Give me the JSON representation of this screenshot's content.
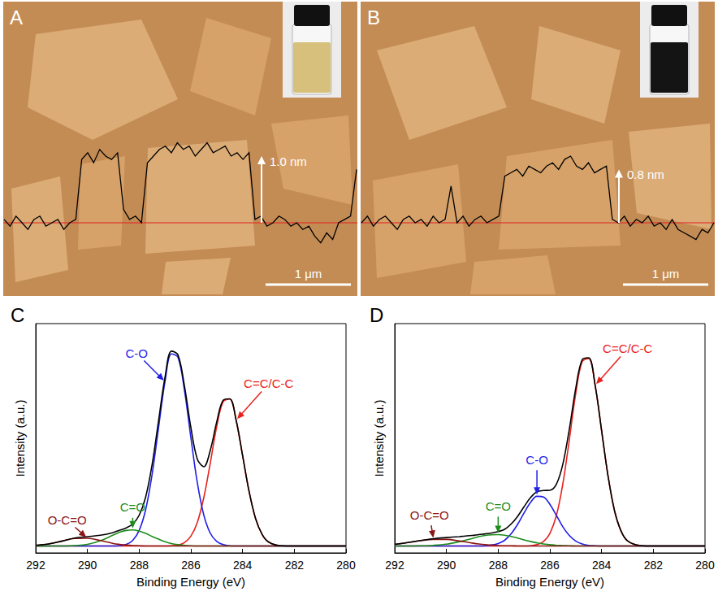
{
  "panels": [
    {
      "panel_label": "A",
      "type": "afm_image",
      "height": {
        "value": 1.0,
        "label": "1.0 nm"
      },
      "scale_bar": {
        "value": 1,
        "label": "1 μm"
      },
      "inset_color": "#d6c07c",
      "profile": [
        0.05,
        -0.05,
        0.1,
        0.0,
        -0.1,
        0.05,
        0.1,
        -0.05,
        0.0,
        0.05,
        -0.1,
        0.0,
        0.05,
        0.95,
        1.05,
        0.9,
        1.1,
        1.0,
        0.95,
        1.05,
        0.2,
        0.05,
        0.1,
        0.0,
        0.9,
        1.0,
        1.1,
        1.15,
        1.05,
        1.2,
        1.1,
        1.15,
        1.0,
        1.1,
        1.2,
        1.05,
        1.1,
        1.15,
        1.0,
        1.05,
        0.95,
        1.05,
        0.05,
        0.1,
        -0.05,
        0.0,
        0.1,
        0.05,
        -0.05,
        0.0,
        -0.1,
        -0.05,
        -0.2,
        -0.3,
        -0.15,
        -0.25,
        0.0,
        0.05,
        0.1,
        0.8
      ]
    },
    {
      "panel_label": "B",
      "type": "afm_image",
      "height": {
        "value": 0.8,
        "label": "0.8 nm"
      },
      "scale_bar": {
        "value": 1,
        "label": "1 μm"
      },
      "inset_color": "#141414",
      "profile": [
        0.0,
        0.1,
        -0.05,
        0.05,
        0.1,
        0.0,
        -0.1,
        0.05,
        0.1,
        0.0,
        0.05,
        -0.05,
        0.1,
        0.0,
        0.05,
        0.55,
        0.0,
        0.1,
        -0.05,
        0.05,
        0.1,
        0.0,
        0.05,
        0.1,
        0.7,
        0.75,
        0.8,
        0.7,
        0.85,
        0.8,
        0.75,
        0.85,
        0.9,
        0.8,
        0.95,
        1.0,
        0.85,
        0.8,
        0.9,
        0.75,
        0.8,
        0.85,
        0.05,
        0.0,
        0.1,
        -0.05,
        0.05,
        0.0,
        0.1,
        -0.05,
        0.0,
        -0.1,
        0.05,
        -0.1,
        -0.15,
        -0.2,
        -0.25,
        -0.1,
        -0.15,
        0.0
      ]
    }
  ],
  "chart_data": [
    {
      "panel_label": "C",
      "type": "line",
      "x_label": "Binding Energy (eV)",
      "y_label": "Intensity (a.u.)",
      "xlim": [
        292,
        280
      ],
      "xticks": [
        292,
        290,
        288,
        286,
        284,
        282,
        280
      ],
      "ylim": [
        0,
        100
      ],
      "tick_labels": "x",
      "grid": false,
      "x": [
        292,
        291.5,
        291,
        290.5,
        290,
        289.5,
        289,
        288.75,
        288.5,
        288.25,
        288,
        287.75,
        287.5,
        287.25,
        287,
        286.75,
        286.5,
        286.25,
        286,
        285.75,
        285.5,
        285.25,
        285,
        284.75,
        284.5,
        284.25,
        284,
        283.75,
        283.5,
        283.25,
        283,
        282.5,
        282,
        281.5,
        281,
        280.5,
        280
      ],
      "series": [
        {
          "color": "#000000",
          "values": [
            3.3,
            3.9,
            5.1,
            6.5,
            7.1,
            7.7,
            8.9,
            9.9,
            10.9,
            12.6,
            16.4,
            24.3,
            38.4,
            57.6,
            76.6,
            88.0,
            86.4,
            72.9,
            54.7,
            40.9,
            37.6,
            44.7,
            57.1,
            66.6,
            67.2,
            57.9,
            42.5,
            26.9,
            15.1,
            8.2,
            4.8,
            3.1,
            3,
            3,
            3,
            3,
            3
          ]
        },
        {
          "name": "C=C/C-C",
          "color": "#e8211d",
          "values": [
            3,
            3,
            3,
            3,
            3,
            3,
            3,
            3,
            3,
            3,
            3,
            3,
            3,
            3,
            3,
            3.1,
            3.4,
            4.5,
            7.3,
            13.3,
            24.1,
            39.1,
            55.1,
            66.0,
            67.1,
            57.9,
            42.5,
            26.9,
            15.1,
            8.2,
            4.8,
            3.1,
            3,
            3,
            3,
            3,
            3
          ]
        },
        {
          "name": "C-O",
          "color": "#1f1fe8",
          "values": [
            3,
            3,
            3,
            3,
            3,
            3,
            3,
            3.2,
            3.7,
            5.4,
            9.8,
            18.8,
            34.2,
            54.6,
            74.7,
            86.8,
            85.4,
            71.1,
            50.3,
            30.6,
            16.5,
            8.6,
            5.0,
            3.6,
            3.1,
            3,
            3,
            3,
            3,
            3,
            3,
            3,
            3,
            3,
            3,
            3,
            3
          ]
        },
        {
          "name": "C=O",
          "color": "#1c8c1c",
          "values": [
            3,
            3,
            3.0,
            3.2,
            3.7,
            5.3,
            7.8,
            9.0,
            9.8,
            10,
            9.5,
            8.5,
            7.2,
            6.0,
            4.9,
            4.1,
            3.6,
            3.3,
            3.1,
            3,
            3,
            3,
            3,
            3,
            3,
            3,
            3,
            3,
            3,
            3,
            3,
            3,
            3,
            3,
            3,
            3,
            3
          ]
        },
        {
          "name": "O-C=O",
          "color": "#8b1414",
          "values": [
            3.3,
            3.9,
            5.1,
            6.3,
            6.4,
            5.4,
            4.1,
            3.7,
            3.4,
            3.2,
            3.1,
            3,
            3,
            3,
            3,
            3,
            3,
            3,
            3,
            3,
            3,
            3,
            3,
            3,
            3,
            3,
            3,
            3,
            3,
            3,
            3,
            3,
            3,
            3,
            3,
            3,
            3
          ]
        }
      ]
    },
    {
      "panel_label": "D",
      "type": "line",
      "x_label": "Binding Energy (eV)",
      "y_label": "Intensity (a.u.)",
      "xlim": [
        292,
        280
      ],
      "xticks": [
        292,
        290,
        288,
        286,
        284,
        282,
        280
      ],
      "ylim": [
        0,
        100
      ],
      "tick_labels": "x",
      "grid": false,
      "x": [
        292,
        291.5,
        291,
        290.5,
        290,
        289.5,
        289,
        288.75,
        288.5,
        288.25,
        288,
        287.75,
        287.5,
        287.25,
        287,
        286.75,
        286.5,
        286.25,
        286,
        285.75,
        285.5,
        285.25,
        285,
        284.75,
        284.5,
        284.25,
        284,
        283.75,
        283.5,
        283.25,
        283,
        282.5,
        282,
        281.5,
        281,
        280.5,
        280
      ],
      "series": [
        {
          "color": "#000000",
          "values": [
            3.7,
            4.5,
            5.4,
            6.2,
            6.7,
            7.1,
            7.6,
            8.0,
            8.3,
            8.7,
            9.3,
            10.3,
            12.6,
            15.9,
            20.1,
            24.1,
            26.7,
            27.2,
            27.3,
            29.9,
            38.6,
            53.8,
            71.7,
            84.3,
            85.1,
            73.2,
            53.4,
            33.5,
            18.4,
            9.6,
            5.3,
            3.2,
            3,
            3,
            3,
            3,
            3
          ]
        },
        {
          "name": "C=C/C-C",
          "color": "#e8211d",
          "values": [
            3,
            3,
            3,
            3,
            3,
            3,
            3,
            3,
            3,
            3,
            3,
            3,
            3,
            3,
            3,
            3.1,
            3.6,
            4.9,
            8.5,
            16.2,
            30.0,
            49.1,
            69.5,
            83.4,
            84.8,
            73.1,
            53.4,
            33.5,
            18.4,
            9.6,
            5.3,
            3.2,
            3,
            3,
            3,
            3,
            3
          ]
        },
        {
          "name": "C-O",
          "color": "#1f1fe8",
          "values": [
            3,
            3,
            3,
            3,
            3,
            3,
            3,
            3.0,
            3.1,
            3.4,
            4.1,
            5.5,
            8.3,
            12.4,
            17.4,
            22.0,
            24.7,
            24.4,
            21.2,
            16.4,
            11.4,
            7.6,
            5.2,
            3.9,
            3.3,
            3.1,
            3,
            3,
            3,
            3,
            3,
            3,
            3,
            3,
            3,
            3,
            3
          ]
        },
        {
          "name": "C=O",
          "color": "#1c8c1c",
          "values": [
            3.0,
            3.0,
            3.1,
            3.3,
            3.8,
            4.9,
            6.3,
            7.1,
            7.6,
            7.9,
            8.0,
            7.7,
            7.2,
            6.5,
            5.7,
            5.0,
            4.4,
            3.9,
            3.6,
            3.3,
            3.2,
            3.1,
            3,
            3,
            3,
            3,
            3,
            3,
            3,
            3,
            3,
            3,
            3,
            3,
            3,
            3,
            3
          ]
        },
        {
          "name": "O-C=O",
          "color": "#8b1414",
          "values": [
            3.7,
            4.5,
            5.3,
            5.9,
            5.9,
            5.2,
            4.3,
            3.9,
            3.6,
            3.4,
            3.2,
            3.1,
            3.1,
            3,
            3,
            3,
            3,
            3,
            3,
            3,
            3,
            3,
            3,
            3,
            3,
            3,
            3,
            3,
            3,
            3,
            3,
            3,
            3,
            3,
            3,
            3,
            3
          ]
        }
      ]
    }
  ]
}
